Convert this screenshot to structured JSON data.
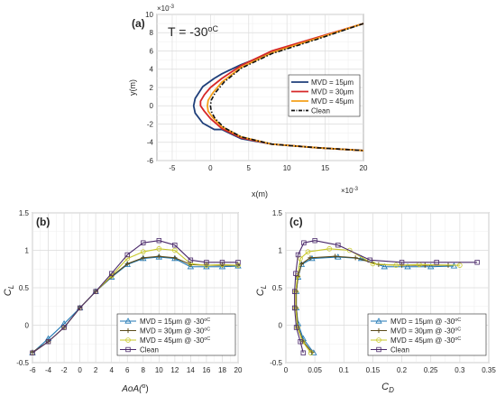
{
  "figure": {
    "panel_labels": [
      "(a)",
      "(b)",
      "(c)"
    ],
    "exponent_label": "×10",
    "exponent_value": "-3"
  },
  "chart_data": [
    {
      "type": "line",
      "panel": "(a)",
      "annotation": "T = -30",
      "annotation_unit": "oC",
      "xlabel": "x(m)",
      "ylabel": "y(m)",
      "xlim": [
        -7,
        20
      ],
      "ylim": [
        -6,
        10
      ],
      "x_scale_note": "×10^-3",
      "y_scale_note": "×10^-3",
      "xticks": [
        -5,
        0,
        5,
        10,
        15,
        20
      ],
      "yticks": [
        -6,
        -4,
        -2,
        0,
        2,
        4,
        6,
        8,
        10
      ],
      "grid": true,
      "legend_position": "right",
      "series": [
        {
          "name": "MVD = 15μm",
          "color": "#1f3f7a",
          "dash": "solid",
          "x": [
            20,
            14,
            8,
            4,
            1.5,
            0.5,
            -1,
            -2,
            -2.2,
            -2,
            -1,
            0.5,
            1.5,
            4,
            8,
            14,
            20
          ],
          "y": [
            9,
            7.4,
            5.8,
            4.5,
            3.5,
            3.0,
            2.1,
            0.8,
            0,
            -0.8,
            -1.9,
            -2.6,
            -2.6,
            -3.6,
            -4.2,
            -4.6,
            -4.9
          ]
        },
        {
          "name": "MVD = 30μm",
          "color": "#d62728",
          "dash": "solid",
          "x": [
            20,
            14,
            8,
            4,
            1.5,
            0,
            -0.8,
            -1.3,
            -1.3,
            -0.8,
            0,
            1.5,
            4,
            8,
            14,
            20
          ],
          "y": [
            9,
            7.5,
            6.0,
            4.4,
            3.0,
            2.0,
            1.2,
            0.5,
            0,
            -0.6,
            -1.4,
            -2.5,
            -3.5,
            -4.2,
            -4.6,
            -4.9
          ]
        },
        {
          "name": "MVD = 45μm",
          "color": "#f5a01a",
          "dash": "solid",
          "x": [
            20,
            14,
            8,
            4,
            1.5,
            0.3,
            -0.3,
            -0.4,
            -0.3,
            0.3,
            1.5,
            4,
            8,
            14,
            20
          ],
          "y": [
            9,
            7.4,
            5.8,
            4.2,
            2.6,
            1.4,
            0.6,
            0,
            -0.6,
            -1.3,
            -2.3,
            -3.4,
            -4.2,
            -4.6,
            -4.9
          ]
        },
        {
          "name": "Clean",
          "color": "#111111",
          "dash": "dashdot",
          "x": [
            20,
            14,
            8,
            4,
            1.8,
            0.6,
            0.1,
            0,
            0.1,
            0.6,
            1.8,
            4,
            8,
            14,
            20
          ],
          "y": [
            9,
            7.3,
            5.7,
            4.1,
            2.6,
            1.4,
            0.6,
            0,
            -0.6,
            -1.4,
            -2.4,
            -3.4,
            -4.2,
            -4.6,
            -4.9
          ]
        }
      ]
    },
    {
      "type": "line",
      "panel": "(b)",
      "xlabel": "AoA(",
      "xlabel_unit": "o",
      "xlabel_close": ")",
      "ylabel": "C",
      "ylabel_sub": "L",
      "xlim": [
        -6,
        20
      ],
      "ylim": [
        -0.5,
        1.5
      ],
      "xticks": [
        -6,
        -4,
        -2,
        0,
        2,
        4,
        6,
        8,
        10,
        12,
        14,
        16,
        18,
        20
      ],
      "yticks": [
        -0.5,
        0,
        0.5,
        1,
        1.5
      ],
      "grid": true,
      "legend_position": "bottom-right",
      "x": [
        -6,
        -4,
        -2,
        0,
        2,
        4,
        6,
        8,
        10,
        12,
        14,
        16,
        18,
        20
      ],
      "series": [
        {
          "name": "MVD = 15μm @ -30",
          "name_unit": "oC",
          "color": "#1f77b4",
          "marker": "triangle",
          "values": [
            -0.37,
            -0.18,
            0.02,
            0.23,
            0.45,
            0.64,
            0.81,
            0.89,
            0.91,
            0.89,
            0.78,
            0.78,
            0.78,
            0.79
          ]
        },
        {
          "name": "MVD = 30μm @ -30",
          "name_unit": "oC",
          "color": "#5a4a1a",
          "marker": "plus",
          "values": [
            -0.36,
            -0.22,
            -0.03,
            0.23,
            0.45,
            0.65,
            0.82,
            0.9,
            0.92,
            0.9,
            0.81,
            0.8,
            0.8,
            0.8
          ]
        },
        {
          "name": "MVD = 45μm @ -30",
          "name_unit": "oC",
          "color": "#c8c82a",
          "marker": "circle",
          "values": [
            -0.37,
            -0.22,
            -0.03,
            0.23,
            0.45,
            0.66,
            0.89,
            0.98,
            1.02,
            1.0,
            0.82,
            0.8,
            0.81,
            0.8
          ]
        },
        {
          "name": "Clean",
          "color": "#4b2a6b",
          "marker": "square",
          "values": [
            -0.37,
            -0.22,
            -0.03,
            0.23,
            0.45,
            0.69,
            0.94,
            1.1,
            1.13,
            1.07,
            0.87,
            0.84,
            0.84,
            0.84
          ]
        }
      ]
    },
    {
      "type": "line",
      "panel": "(c)",
      "xlabel": "C",
      "xlabel_sub": "D",
      "ylabel": "C",
      "ylabel_sub": "L",
      "xlim": [
        0,
        0.35
      ],
      "ylim": [
        -0.5,
        1.5
      ],
      "xticks": [
        0,
        0.05,
        0.1,
        0.15,
        0.2,
        0.25,
        0.3,
        0.35
      ],
      "yticks": [
        -0.5,
        0,
        0.5,
        1,
        1.5
      ],
      "grid": true,
      "legend_position": "bottom-right",
      "series": [
        {
          "name": "MVD = 15μm @ -30",
          "name_unit": "oC",
          "color": "#1f77b4",
          "marker": "triangle",
          "x": [
            0.048,
            0.03,
            0.021,
            0.018,
            0.018,
            0.021,
            0.027,
            0.045,
            0.09,
            0.13,
            0.17,
            0.21,
            0.25,
            0.29
          ],
          "y": [
            -0.37,
            -0.18,
            0.02,
            0.23,
            0.45,
            0.64,
            0.81,
            0.89,
            0.91,
            0.89,
            0.78,
            0.78,
            0.78,
            0.79
          ]
        },
        {
          "name": "MVD = 30μm @ -30",
          "name_unit": "oC",
          "color": "#5a4a1a",
          "marker": "plus",
          "x": [
            0.045,
            0.03,
            0.021,
            0.018,
            0.018,
            0.021,
            0.027,
            0.042,
            0.085,
            0.12,
            0.16,
            0.2,
            0.24,
            0.28
          ],
          "y": [
            -0.36,
            -0.22,
            -0.03,
            0.23,
            0.45,
            0.65,
            0.82,
            0.9,
            0.92,
            0.9,
            0.81,
            0.8,
            0.8,
            0.8
          ]
        },
        {
          "name": "MVD = 45μm @ -30",
          "name_unit": "oC",
          "color": "#c8c82a",
          "marker": "circle",
          "x": [
            0.043,
            0.029,
            0.02,
            0.017,
            0.017,
            0.02,
            0.025,
            0.038,
            0.075,
            0.11,
            0.15,
            0.19,
            0.23,
            0.3
          ],
          "y": [
            -0.37,
            -0.22,
            -0.03,
            0.23,
            0.45,
            0.66,
            0.89,
            0.98,
            1.02,
            1.0,
            0.82,
            0.8,
            0.81,
            0.8
          ]
        },
        {
          "name": "Clean",
          "color": "#4b2a6b",
          "marker": "square",
          "x": [
            0.03,
            0.025,
            0.018,
            0.015,
            0.015,
            0.017,
            0.021,
            0.031,
            0.05,
            0.09,
            0.145,
            0.2,
            0.26,
            0.33
          ],
          "y": [
            -0.37,
            -0.22,
            -0.03,
            0.23,
            0.45,
            0.69,
            0.94,
            1.1,
            1.13,
            1.07,
            0.87,
            0.84,
            0.84,
            0.84
          ]
        }
      ]
    }
  ]
}
